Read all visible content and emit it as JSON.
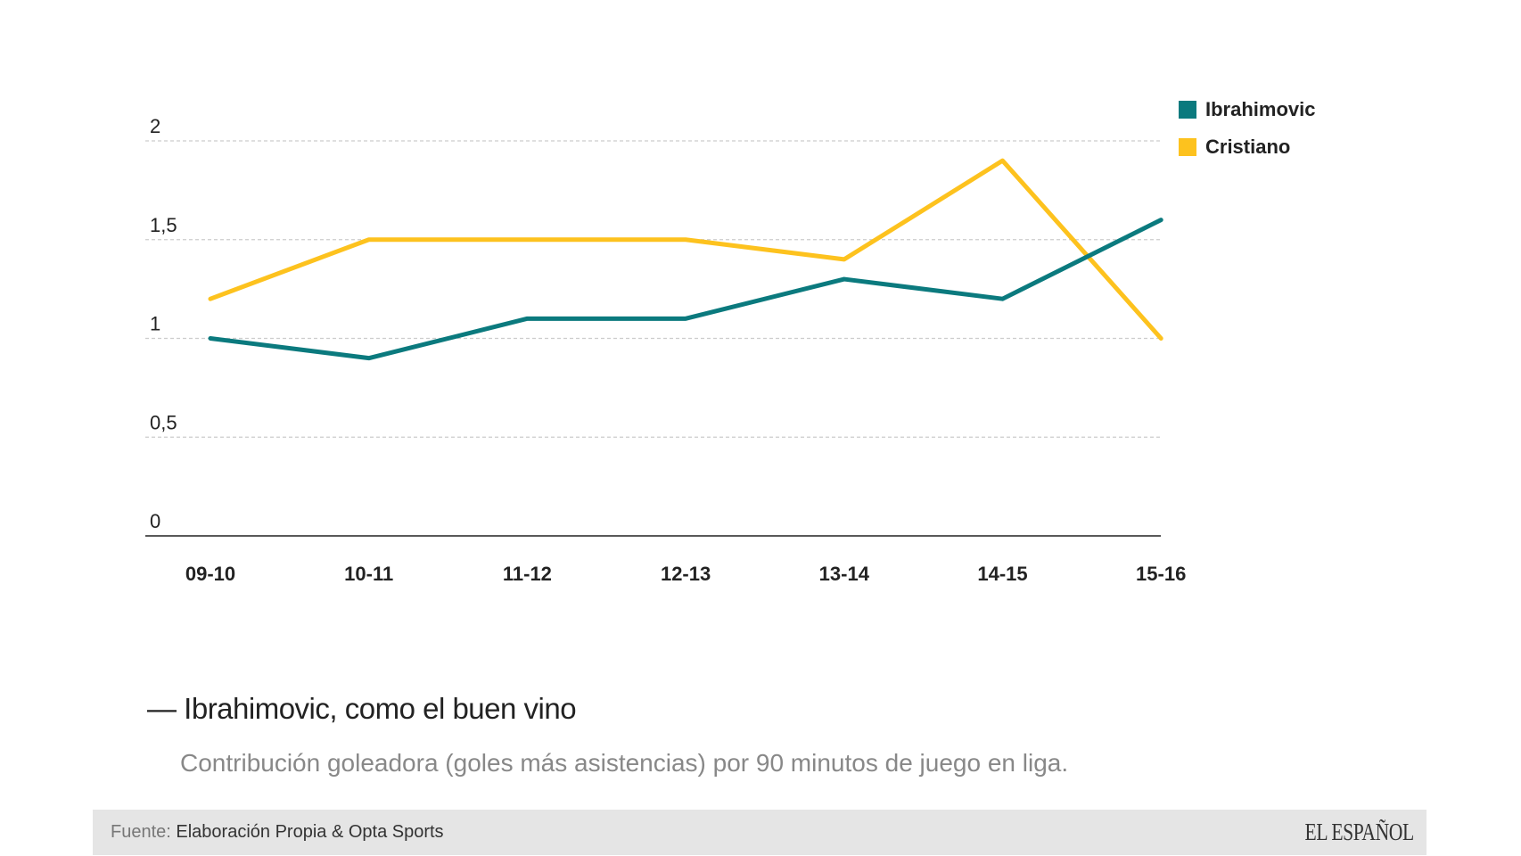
{
  "chart_data": {
    "type": "line",
    "categories": [
      "09-10",
      "10-11",
      "11-12",
      "12-13",
      "13-14",
      "14-15",
      "15-16"
    ],
    "series": [
      {
        "name": "Ibrahimovic",
        "color": "#0b7a7e",
        "values": [
          1.0,
          0.9,
          1.1,
          1.1,
          1.3,
          1.2,
          1.6
        ]
      },
      {
        "name": "Cristiano",
        "color": "#fdc21e",
        "values": [
          1.2,
          1.5,
          1.5,
          1.5,
          1.4,
          1.9,
          1.0
        ]
      }
    ],
    "yticks": [
      0,
      0.5,
      1,
      1.5,
      2
    ],
    "ytick_labels": [
      "0",
      "0,5",
      "1",
      "1,5",
      "2"
    ],
    "ylim": [
      0,
      2
    ],
    "grid": true,
    "legend": "top-right"
  },
  "title": "— Ibrahimovic, como el buen vino",
  "subtitle": "Contribución goleadora (goles más asistencias) por 90 minutos de juego en liga.",
  "footer": {
    "source_label": "Fuente:",
    "source_text": "Elaboración Propia & Opta Sports",
    "logo": "EL ESPAÑOL"
  }
}
